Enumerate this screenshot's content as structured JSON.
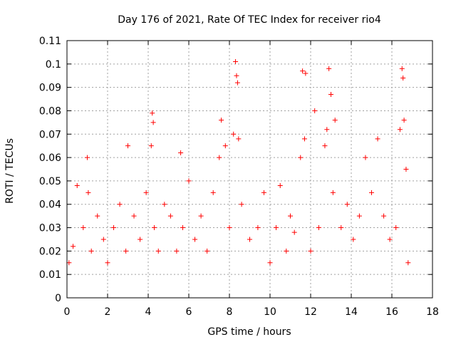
{
  "chart_data": {
    "type": "scatter",
    "title": "Day 176 of 2021, Rate Of TEC Index for receiver rio4",
    "xlabel": "GPS time / hours",
    "ylabel": "ROTI / TECUs",
    "xlim": [
      0,
      18
    ],
    "ylim": [
      0,
      0.11
    ],
    "xticks": [
      "0",
      "2",
      "4",
      "6",
      "8",
      "10",
      "12",
      "14",
      "16",
      "18"
    ],
    "yticks": [
      "0",
      "0.01",
      "0.02",
      "0.03",
      "0.04",
      "0.05",
      "0.06",
      "0.07",
      "0.08",
      "0.09",
      "0.1",
      "0.11"
    ],
    "grid": true,
    "marker": "+",
    "color": "#ff0000",
    "series": [
      {
        "x": [
          0.1,
          0.3,
          0.5,
          0.8,
          1.0,
          1.05,
          1.2,
          1.5,
          1.8,
          2.0,
          2.3,
          2.6,
          2.9,
          3.0,
          3.3,
          3.6,
          3.9,
          4.15,
          4.2,
          4.25,
          4.3,
          4.5,
          4.8,
          5.1,
          5.4,
          5.6,
          5.7,
          6.0,
          6.3,
          6.6,
          6.9,
          7.2,
          7.5,
          7.6,
          7.8,
          8.0,
          8.2,
          8.3,
          8.35,
          8.4,
          8.45,
          8.6,
          9.0,
          9.4,
          9.7,
          10.0,
          10.3,
          10.5,
          10.8,
          11.0,
          11.2,
          11.5,
          11.6,
          11.7,
          11.75,
          12.0,
          12.2,
          12.4,
          12.7,
          12.8,
          12.9,
          13.0,
          13.1,
          13.2,
          13.5,
          13.8,
          14.1,
          14.4,
          14.7,
          15.0,
          15.3,
          15.6,
          15.9,
          16.2,
          16.4,
          16.5,
          16.55,
          16.6,
          16.7,
          16.8
        ],
        "y": [
          0.015,
          0.022,
          0.048,
          0.03,
          0.06,
          0.045,
          0.02,
          0.035,
          0.025,
          0.015,
          0.03,
          0.04,
          0.02,
          0.065,
          0.035,
          0.025,
          0.045,
          0.065,
          0.079,
          0.075,
          0.03,
          0.02,
          0.04,
          0.035,
          0.02,
          0.062,
          0.03,
          0.05,
          0.025,
          0.035,
          0.02,
          0.045,
          0.06,
          0.076,
          0.065,
          0.03,
          0.07,
          0.101,
          0.095,
          0.092,
          0.068,
          0.04,
          0.025,
          0.03,
          0.045,
          0.015,
          0.03,
          0.048,
          0.02,
          0.035,
          0.028,
          0.06,
          0.097,
          0.068,
          0.096,
          0.02,
          0.08,
          0.03,
          0.065,
          0.072,
          0.098,
          0.087,
          0.045,
          0.076,
          0.03,
          0.04,
          0.025,
          0.035,
          0.06,
          0.045,
          0.068,
          0.035,
          0.025,
          0.03,
          0.072,
          0.098,
          0.094,
          0.076,
          0.055,
          0.015
        ]
      }
    ]
  }
}
